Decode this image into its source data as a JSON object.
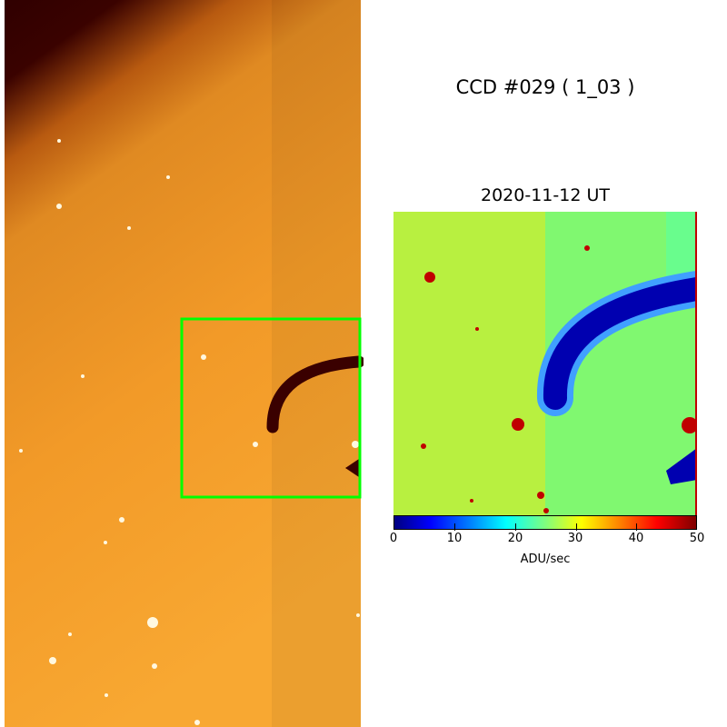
{
  "figure": {
    "title": "CCD #029 ( 1_03 )",
    "subtitle": "2020-11-12 UT",
    "highlight_color": "#00ff00"
  },
  "colorbar": {
    "label": "ADU/sec",
    "ticks": [
      "0",
      "10",
      "20",
      "30",
      "40",
      "50"
    ],
    "range": [
      0,
      50
    ],
    "colormap": "jet"
  }
}
